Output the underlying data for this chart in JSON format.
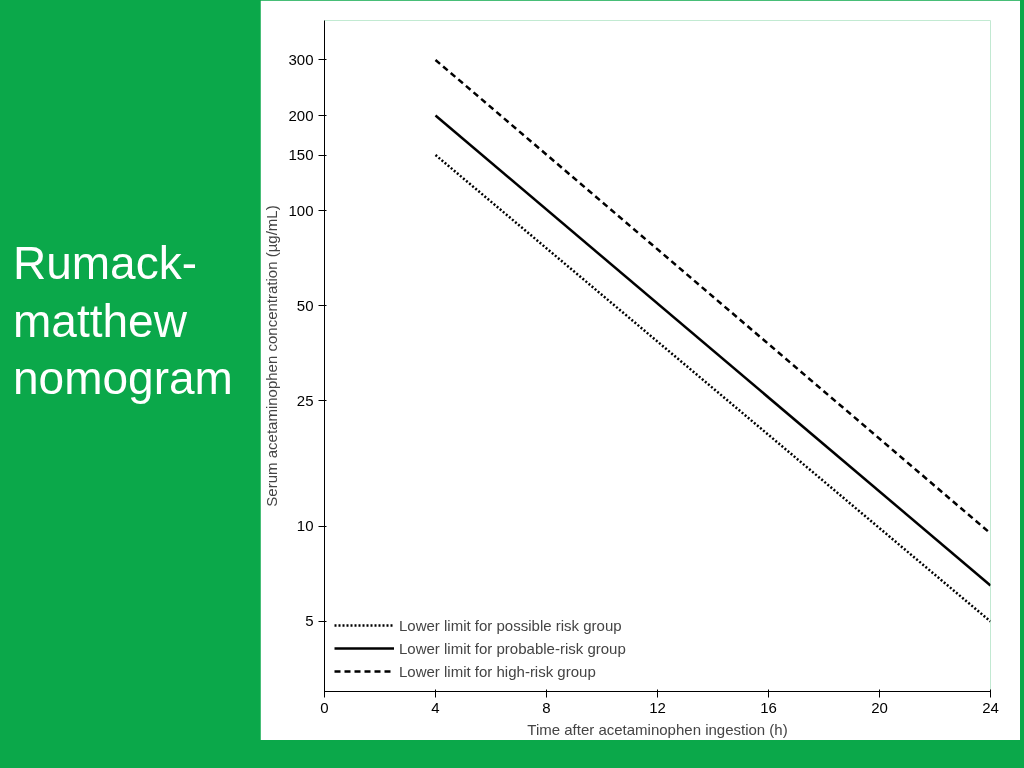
{
  "chart_data": {
    "type": "line",
    "title": "Rumack-matthew nomogram",
    "xlabel": "Time after acetaminophen ingestion (h)",
    "ylabel": "Serum acetaminophen concentration (µg/mL)",
    "log": "y",
    "xlim": [
      0,
      24
    ],
    "xticks": [
      0,
      4,
      8,
      12,
      16,
      20,
      24
    ],
    "ylim": [
      3,
      400
    ],
    "yticks": [
      5,
      10,
      25,
      50,
      100,
      150,
      200,
      300
    ],
    "grid": false,
    "legend": "bottom left",
    "marker": "none",
    "x": [
      4,
      24
    ],
    "series": [
      {
        "name": "Lower limit for possible risk group",
        "color": "#000000",
        "line_style": "dotted",
        "values": [
          150,
          5
        ]
      },
      {
        "name": "Lower limit for probable-risk group",
        "color": "#000000",
        "line_style": "solid",
        "values": [
          200,
          6.5
        ]
      },
      {
        "name": "Lower limit for high-risk group",
        "color": "#000000",
        "line_style": "dashed",
        "values": [
          300,
          9.5
        ]
      }
    ]
  }
}
